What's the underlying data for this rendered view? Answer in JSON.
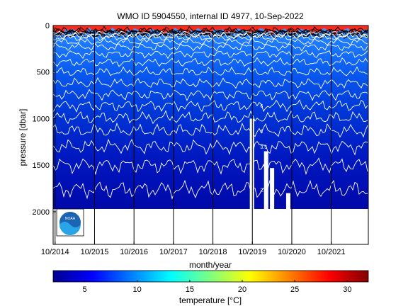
{
  "chart_data": [
    {
      "type": "heatmap",
      "title": "WMO ID 5904550, internal ID 4977, 10-Sep-2022",
      "xlabel": "month/year",
      "ylabel": "pressure [dbar]",
      "x_tick_labels": [
        "10/2014",
        "10/2015",
        "10/2016",
        "10/2017",
        "10/2018",
        "10/2019",
        "10/2020",
        "10/2021"
      ],
      "x_ticks": [
        2014.75,
        2015.75,
        2016.75,
        2017.75,
        2018.75,
        2019.75,
        2020.75,
        2021.75
      ],
      "xlim": [
        2014.7,
        2022.69
      ],
      "y_ticks": [
        0,
        500,
        1000,
        1500,
        2000
      ],
      "y_tick_labels": [
        "0",
        "500",
        "1000",
        "1500",
        "2000"
      ],
      "ylim": [
        2350,
        0
      ],
      "y_reversed": true,
      "data_depth_range": [
        0,
        2000
      ],
      "contour_levels": [
        {
          "pressure": 90,
          "label": ""
        },
        {
          "pressure": 110,
          "label": ""
        },
        {
          "pressure": 130,
          "label": ""
        },
        {
          "pressure": 175,
          "label": ""
        },
        {
          "pressure": 230,
          "label": ""
        },
        {
          "pressure": 305,
          "label": ""
        },
        {
          "pressure": 395,
          "label": ""
        },
        {
          "pressure": 500,
          "label": ""
        },
        {
          "pressure": 620,
          "label": ""
        },
        {
          "pressure": 740,
          "label": ""
        },
        {
          "pressure": 860,
          "label": "6"
        },
        {
          "pressure": 990,
          "label": ""
        },
        {
          "pressure": 1130,
          "label": "4"
        },
        {
          "pressure": 1300,
          "label": "3.5"
        },
        {
          "pressure": 1500,
          "label": ""
        },
        {
          "pressure": 1760,
          "label": "2.5"
        }
      ],
      "data_gaps": [
        {
          "date": 2019.74,
          "from_pressure": 1000
        },
        {
          "date": 2020.1,
          "from_pressure": 1350
        },
        {
          "date": 2020.25,
          "from_pressure": 1530
        },
        {
          "date": 2020.66,
          "from_pressure": 1800
        }
      ],
      "colorbar": {
        "label": "temperature [°C]",
        "range": [
          2,
          32
        ],
        "ticks": [
          5,
          10,
          15,
          20,
          25,
          30
        ],
        "colormap": "jet"
      },
      "logo": "NOAA"
    }
  ]
}
